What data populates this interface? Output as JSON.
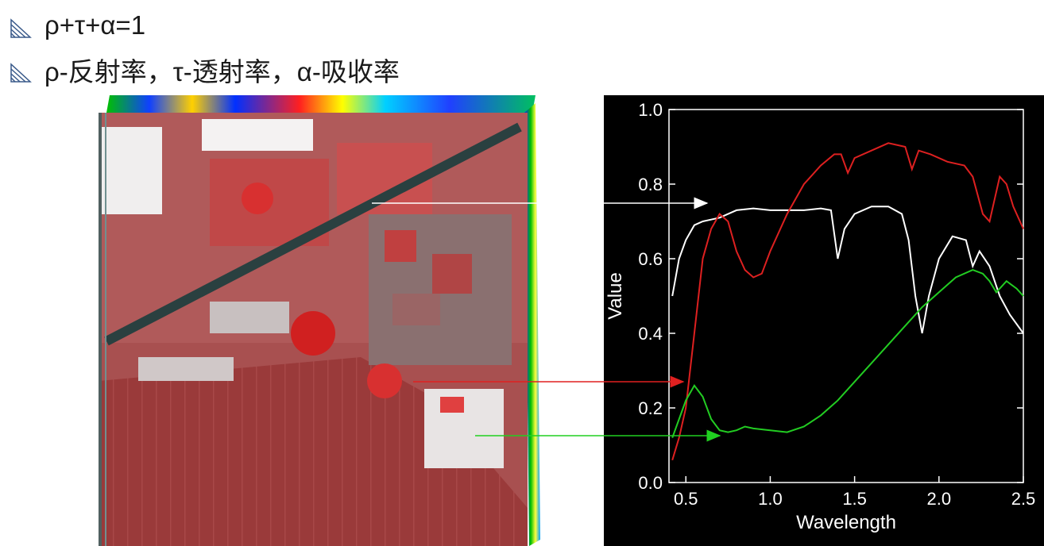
{
  "bullets": [
    {
      "text": "ρ+τ+α=1",
      "icon": "striped-triangle-icon"
    },
    {
      "text": "ρ-反射率，τ-透射率，α-吸收率",
      "icon": "striped-triangle-icon"
    }
  ],
  "image": {
    "description_icon": "hyperspectral-image-cube"
  },
  "chart_data": {
    "type": "line",
    "xlabel": "Wavelength",
    "ylabel": "Value",
    "xlim": [
      0.4,
      2.5
    ],
    "ylim": [
      0.0,
      1.0
    ],
    "xticks": [
      "0.5",
      "1.0",
      "1.5",
      "2.0",
      "2.5"
    ],
    "yticks": [
      "0.0",
      "0.2",
      "0.4",
      "0.6",
      "0.8",
      "1.0"
    ],
    "background": "#000000",
    "series": [
      {
        "color": "#ffffff",
        "points": [
          [
            0.42,
            0.5
          ],
          [
            0.46,
            0.6
          ],
          [
            0.5,
            0.65
          ],
          [
            0.55,
            0.69
          ],
          [
            0.6,
            0.7
          ],
          [
            0.7,
            0.71
          ],
          [
            0.8,
            0.73
          ],
          [
            0.9,
            0.735
          ],
          [
            1.0,
            0.73
          ],
          [
            1.1,
            0.73
          ],
          [
            1.2,
            0.73
          ],
          [
            1.3,
            0.735
          ],
          [
            1.36,
            0.73
          ],
          [
            1.4,
            0.6
          ],
          [
            1.44,
            0.68
          ],
          [
            1.5,
            0.72
          ],
          [
            1.6,
            0.74
          ],
          [
            1.7,
            0.74
          ],
          [
            1.78,
            0.72
          ],
          [
            1.82,
            0.65
          ],
          [
            1.86,
            0.5
          ],
          [
            1.9,
            0.4
          ],
          [
            1.94,
            0.5
          ],
          [
            2.0,
            0.6
          ],
          [
            2.08,
            0.66
          ],
          [
            2.16,
            0.65
          ],
          [
            2.2,
            0.58
          ],
          [
            2.24,
            0.62
          ],
          [
            2.3,
            0.58
          ],
          [
            2.36,
            0.5
          ],
          [
            2.42,
            0.45
          ],
          [
            2.5,
            0.4
          ]
        ]
      },
      {
        "color": "#dd2020",
        "points": [
          [
            0.42,
            0.06
          ],
          [
            0.46,
            0.12
          ],
          [
            0.5,
            0.2
          ],
          [
            0.55,
            0.4
          ],
          [
            0.6,
            0.6
          ],
          [
            0.65,
            0.68
          ],
          [
            0.7,
            0.72
          ],
          [
            0.75,
            0.7
          ],
          [
            0.8,
            0.62
          ],
          [
            0.85,
            0.57
          ],
          [
            0.9,
            0.55
          ],
          [
            0.95,
            0.56
          ],
          [
            1.0,
            0.62
          ],
          [
            1.1,
            0.72
          ],
          [
            1.2,
            0.8
          ],
          [
            1.3,
            0.85
          ],
          [
            1.38,
            0.88
          ],
          [
            1.42,
            0.88
          ],
          [
            1.46,
            0.83
          ],
          [
            1.5,
            0.87
          ],
          [
            1.6,
            0.89
          ],
          [
            1.7,
            0.91
          ],
          [
            1.8,
            0.9
          ],
          [
            1.84,
            0.84
          ],
          [
            1.88,
            0.89
          ],
          [
            1.95,
            0.88
          ],
          [
            2.05,
            0.86
          ],
          [
            2.15,
            0.85
          ],
          [
            2.2,
            0.82
          ],
          [
            2.26,
            0.72
          ],
          [
            2.3,
            0.7
          ],
          [
            2.36,
            0.82
          ],
          [
            2.4,
            0.8
          ],
          [
            2.44,
            0.74
          ],
          [
            2.5,
            0.68
          ]
        ]
      },
      {
        "color": "#22cc22",
        "points": [
          [
            0.42,
            0.12
          ],
          [
            0.46,
            0.17
          ],
          [
            0.5,
            0.22
          ],
          [
            0.55,
            0.26
          ],
          [
            0.6,
            0.23
          ],
          [
            0.65,
            0.17
          ],
          [
            0.7,
            0.14
          ],
          [
            0.75,
            0.135
          ],
          [
            0.8,
            0.14
          ],
          [
            0.85,
            0.15
          ],
          [
            0.9,
            0.145
          ],
          [
            1.0,
            0.14
          ],
          [
            1.1,
            0.135
          ],
          [
            1.2,
            0.15
          ],
          [
            1.3,
            0.18
          ],
          [
            1.4,
            0.22
          ],
          [
            1.5,
            0.27
          ],
          [
            1.6,
            0.32
          ],
          [
            1.7,
            0.37
          ],
          [
            1.8,
            0.42
          ],
          [
            1.9,
            0.47
          ],
          [
            2.0,
            0.51
          ],
          [
            2.1,
            0.55
          ],
          [
            2.2,
            0.57
          ],
          [
            2.26,
            0.56
          ],
          [
            2.3,
            0.54
          ],
          [
            2.34,
            0.51
          ],
          [
            2.4,
            0.54
          ],
          [
            2.46,
            0.52
          ],
          [
            2.5,
            0.5
          ]
        ]
      }
    ]
  }
}
